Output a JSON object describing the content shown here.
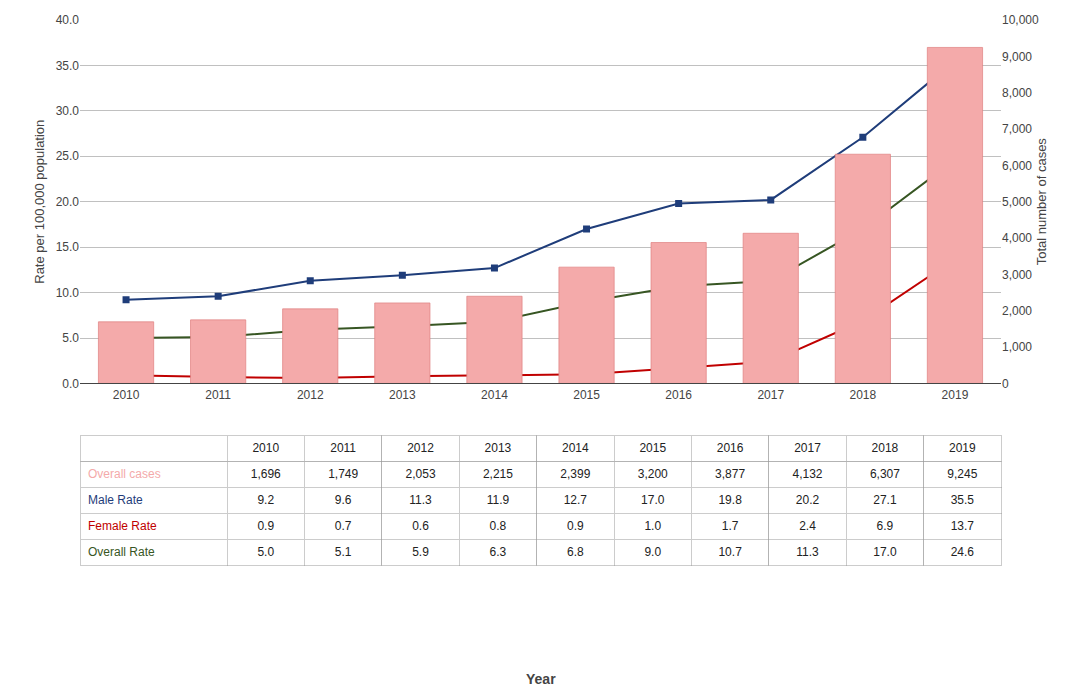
{
  "chart_data": {
    "type": "combo",
    "xlabel": "Year",
    "ylabel": "Rate per 100,000 population",
    "y2label": "Total number of cases",
    "categories": [
      "2010",
      "2011",
      "2012",
      "2013",
      "2014",
      "2015",
      "2016",
      "2017",
      "2018",
      "2019"
    ],
    "series": [
      {
        "name": "Overall cases",
        "type": "bar",
        "axis": "y2",
        "color": "#F4AAAA",
        "values": [
          1696,
          1749,
          2053,
          2215,
          2399,
          3200,
          3877,
          4132,
          6307,
          9245
        ],
        "value_labels": [
          "1,696",
          "1,749",
          "2,053",
          "2,215",
          "2,399",
          "3,200",
          "3,877",
          "4,132",
          "6,307",
          "9,245"
        ]
      },
      {
        "name": "Male Rate",
        "type": "line",
        "color": "#1F3D7A",
        "marker": "square",
        "values": [
          9.2,
          9.6,
          11.3,
          11.9,
          12.7,
          17.0,
          19.8,
          20.2,
          27.1,
          35.5
        ],
        "value_labels": [
          "9.2",
          "9.6",
          "11.3",
          "11.9",
          "12.7",
          "17.0",
          "19.8",
          "20.2",
          "27.1",
          "35.5"
        ]
      },
      {
        "name": "Female Rate",
        "type": "line",
        "color": "#C00000",
        "marker": "triangle",
        "values": [
          0.9,
          0.7,
          0.6,
          0.8,
          0.9,
          1.0,
          1.7,
          2.4,
          6.9,
          13.7
        ],
        "value_labels": [
          "0.9",
          "0.7",
          "0.6",
          "0.8",
          "0.9",
          "1.0",
          "1.7",
          "2.4",
          "6.9",
          "13.7"
        ]
      },
      {
        "name": "Overall Rate",
        "type": "line",
        "color": "#375623",
        "marker": "circle",
        "values": [
          5.0,
          5.1,
          5.9,
          6.3,
          6.8,
          9.0,
          10.7,
          11.3,
          17.0,
          24.6
        ],
        "value_labels": [
          "5.0",
          "5.1",
          "5.9",
          "6.3",
          "6.8",
          "9.0",
          "10.7",
          "11.3",
          "17.0",
          "24.6"
        ]
      }
    ],
    "ylim": [
      0,
      40
    ],
    "yticks": [
      {
        "value": 0,
        "label": "0.0"
      },
      {
        "value": 5,
        "label": "5.0"
      },
      {
        "value": 10,
        "label": "10.0"
      },
      {
        "value": 15,
        "label": "15.0"
      },
      {
        "value": 20,
        "label": "20.0"
      },
      {
        "value": 25,
        "label": "25.0"
      },
      {
        "value": 30,
        "label": "30.0"
      },
      {
        "value": 35,
        "label": "35.0"
      },
      {
        "value": 40,
        "label": "40.0"
      }
    ],
    "y2lim": [
      0,
      10000
    ],
    "y2ticks": [
      0,
      {
        "value": 1000,
        "label": "1,000"
      },
      {
        "value": 2000,
        "label": "2,000"
      },
      {
        "value": 3000,
        "label": "3,000"
      },
      {
        "value": 4000,
        "label": "4,000"
      },
      {
        "value": 5000,
        "label": "5,000"
      },
      {
        "value": 6000,
        "label": "6,000"
      },
      {
        "value": 7000,
        "label": "7,000"
      },
      {
        "value": 8000,
        "label": "8,000"
      },
      {
        "value": 9000,
        "label": "9,000"
      },
      {
        "value": 10000,
        "label": "10,000"
      }
    ],
    "grid": true
  }
}
